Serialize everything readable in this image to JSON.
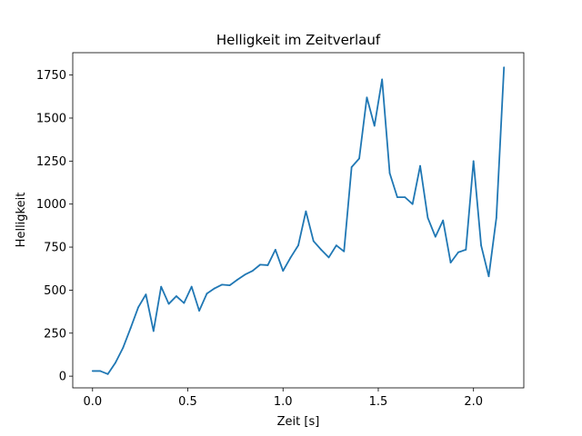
{
  "chart_data": {
    "type": "line",
    "title": "Helligkeit im Zeitverlauf",
    "xlabel": "Zeit [s]",
    "ylabel": "Helligkeit",
    "xlim": [
      -0.104,
      2.264
    ],
    "ylim": [
      -68,
      1880
    ],
    "xticks": [
      0.0,
      0.5,
      1.0,
      1.5,
      2.0
    ],
    "xtick_labels": [
      "0.0",
      "0.5",
      "1.0",
      "1.5",
      "2.0"
    ],
    "yticks": [
      0,
      250,
      500,
      750,
      1000,
      1250,
      1500,
      1750
    ],
    "ytick_labels": [
      "0",
      "250",
      "500",
      "750",
      "1000",
      "1250",
      "1500",
      "1750"
    ],
    "grid": false,
    "line_color": "#1f77b4",
    "series": [
      {
        "x": [
          0.0,
          0.04,
          0.08,
          0.12,
          0.16,
          0.2,
          0.24,
          0.28,
          0.32,
          0.36,
          0.4,
          0.44,
          0.48,
          0.52,
          0.56,
          0.6,
          0.64,
          0.68,
          0.72,
          0.76,
          0.8,
          0.84,
          0.88,
          0.92,
          0.96,
          1.0,
          1.04,
          1.08,
          1.12,
          1.16,
          1.2,
          1.24,
          1.28,
          1.32,
          1.36,
          1.4,
          1.44,
          1.48,
          1.52,
          1.56,
          1.6,
          1.64,
          1.68,
          1.72,
          1.76,
          1.8,
          1.84,
          1.88,
          1.92,
          1.96,
          2.0,
          2.04,
          2.08,
          2.12,
          2.16
        ],
        "y": [
          30,
          30,
          12,
          78,
          165,
          280,
          400,
          475,
          262,
          520,
          420,
          465,
          425,
          520,
          380,
          480,
          510,
          532,
          528,
          560,
          590,
          612,
          648,
          645,
          735,
          612,
          690,
          760,
          958,
          785,
          735,
          690,
          760,
          725,
          1215,
          1265,
          1620,
          1455,
          1725,
          1180,
          1040,
          1040,
          1000,
          1222,
          920,
          810,
          905,
          660,
          720,
          735,
          1250,
          760,
          580,
          920,
          1795
        ]
      }
    ]
  }
}
